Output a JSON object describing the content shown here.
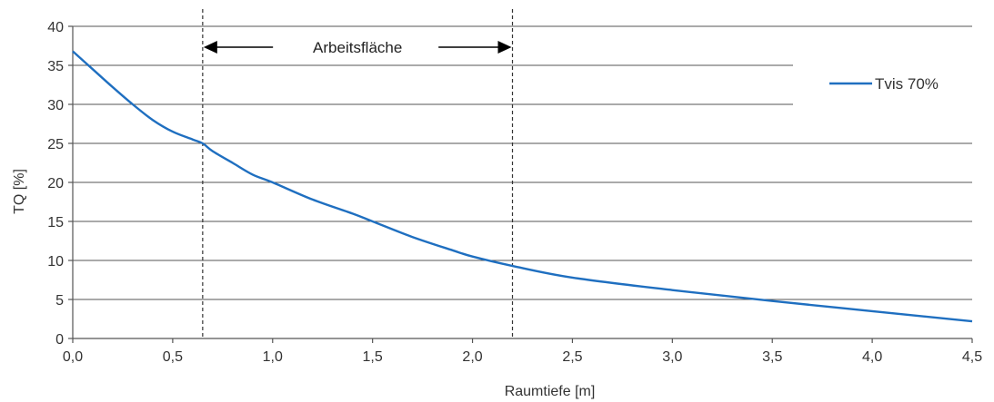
{
  "chart_data": {
    "type": "line",
    "xlabel": "Raumtiefe  [m]",
    "ylabel": "TQ [%]",
    "xlim": [
      0,
      4.5
    ],
    "ylim": [
      0,
      40
    ],
    "xticks": [
      "0,0",
      "0,5",
      "1,0",
      "1,5",
      "2,0",
      "2,5",
      "3,0",
      "3,5",
      "4,0",
      "4,5"
    ],
    "yticks": [
      "0",
      "5",
      "10",
      "15",
      "20",
      "25",
      "30",
      "35",
      "40"
    ],
    "grid": "horizontal",
    "legend_position": "top-right",
    "series": [
      {
        "name": "Tvis 70%",
        "color": "#1f6fc0",
        "x": [
          0.0,
          0.1,
          0.2,
          0.3,
          0.4,
          0.5,
          0.6,
          0.65,
          0.7,
          0.8,
          0.9,
          1.0,
          1.2,
          1.4,
          1.5,
          1.7,
          1.9,
          2.0,
          2.2,
          2.5,
          3.0,
          3.5,
          4.0,
          4.5
        ],
        "y": [
          36.8,
          34.5,
          32.2,
          30.0,
          28.0,
          26.5,
          25.5,
          25.0,
          24.0,
          22.5,
          21.0,
          20.0,
          17.8,
          16.0,
          15.0,
          13.0,
          11.3,
          10.5,
          9.3,
          7.8,
          6.2,
          4.8,
          3.5,
          2.2
        ]
      }
    ],
    "vertical_lines": [
      0.65,
      2.2
    ],
    "annotation": {
      "text": "Arbeitsfläche",
      "from": 0.65,
      "to": 2.2
    }
  }
}
